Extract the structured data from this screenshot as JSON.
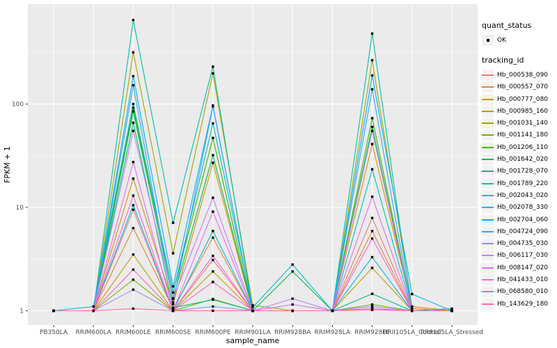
{
  "chart_data": {
    "type": "line",
    "title": "",
    "xlabel": "sample_name",
    "ylabel": "FPKM + 1",
    "y_scale": "log10",
    "y_ticks": [
      1,
      10,
      100
    ],
    "ylim": [
      0.93,
      900
    ],
    "grid": "on",
    "legend_position": "right",
    "panel_color": "#EBEBEB",
    "gridline_color": "#FFFFFF",
    "axis_text_color": "#4D4D4D",
    "marker_color": "#000000",
    "categories": [
      "PB350LA",
      "RRIM600LA",
      "RRIM600LE",
      "RRIM600SE",
      "RRIM600PE",
      "RRIM901LA",
      "RRIM928BA",
      "RRIM928LA",
      "RRIM928LE",
      "RRII105LA_Control",
      "RRII105LA_Stressed"
    ],
    "legend": {
      "quant_status_title": "quant_status",
      "ok_label": "OK",
      "tracking_title": "tracking_id"
    },
    "series": [
      {
        "name": "Hb_000538_090",
        "color": "#F8766D",
        "values": [
          1.0,
          1.0,
          9.5,
          1.0,
          3.1,
          1.0,
          1.0,
          1.0,
          7.9,
          1.0,
          1.0
        ]
      },
      {
        "name": "Hb_000557_070",
        "color": "#EA8331",
        "values": [
          1.0,
          1.0,
          6.3,
          1.05,
          5.1,
          1.0,
          1.0,
          1.0,
          5.9,
          1.0,
          1.0
        ]
      },
      {
        "name": "Hb_000777_080",
        "color": "#D89000",
        "values": [
          1.0,
          1.0,
          19.0,
          1.16,
          27.0,
          1.0,
          1.0,
          1.0,
          41.0,
          1.05,
          1.0
        ]
      },
      {
        "name": "Hb_000985_160",
        "color": "#C09B00",
        "values": [
          1.0,
          1.0,
          3.5,
          1.0,
          2.4,
          1.0,
          1.0,
          1.0,
          2.6,
          1.0,
          1.0
        ]
      },
      {
        "name": "Hb_001031_140",
        "color": "#A3A500",
        "values": [
          1.0,
          1.0,
          316.0,
          3.6,
          198.0,
          1.13,
          1.0,
          1.0,
          265.0,
          1.1,
          1.0
        ]
      },
      {
        "name": "Hb_001141_180",
        "color": "#7CAE00",
        "values": [
          1.0,
          1.0,
          2.0,
          1.0,
          1.3,
          1.0,
          1.0,
          1.0,
          1.15,
          1.0,
          1.0
        ]
      },
      {
        "name": "Hb_001206_110",
        "color": "#39B600",
        "values": [
          1.0,
          1.0,
          92.0,
          1.5,
          47.0,
          1.0,
          1.0,
          1.0,
          73.0,
          1.0,
          1.0
        ]
      },
      {
        "name": "Hb_001642_020",
        "color": "#00BB4E",
        "values": [
          1.0,
          1.0,
          85.0,
          1.32,
          32.0,
          1.0,
          2.4,
          1.0,
          60.0,
          1.0,
          1.0
        ]
      },
      {
        "name": "Hb_001728_070",
        "color": "#00BF7D",
        "values": [
          1.0,
          1.0,
          66.0,
          1.07,
          1.28,
          1.0,
          1.0,
          1.0,
          1.46,
          1.0,
          1.0
        ]
      },
      {
        "name": "Hb_001789_220",
        "color": "#00C1A3",
        "values": [
          1.0,
          1.0,
          650.0,
          7.1,
          230.0,
          1.0,
          1.0,
          1.0,
          480.0,
          1.0,
          1.0
        ]
      },
      {
        "name": "Hb_002043_020",
        "color": "#00BFC4",
        "values": [
          1.0,
          1.1,
          100.0,
          1.5,
          65.0,
          1.08,
          2.8,
          1.0,
          23.4,
          1.0,
          1.0
        ]
      },
      {
        "name": "Hb_002078_330",
        "color": "#00BAE0",
        "values": [
          1.0,
          1.0,
          10.5,
          1.0,
          5.9,
          1.0,
          1.0,
          1.0,
          3.3,
          1.0,
          1.05
        ]
      },
      {
        "name": "Hb_002704_060",
        "color": "#00B0F6",
        "values": [
          1.0,
          1.0,
          186.0,
          1.72,
          97.0,
          1.0,
          1.0,
          1.0,
          189.0,
          1.45,
          1.0
        ]
      },
      {
        "name": "Hb_004724_090",
        "color": "#35A2FF",
        "values": [
          1.0,
          1.0,
          152.0,
          1.2,
          95.0,
          1.0,
          1.0,
          1.0,
          139.0,
          1.0,
          1.0
        ]
      },
      {
        "name": "Hb_004735_030",
        "color": "#9590FF",
        "values": [
          1.0,
          1.0,
          1.6,
          1.0,
          1.1,
          1.0,
          1.0,
          1.0,
          1.1,
          1.0,
          1.0
        ]
      },
      {
        "name": "Hb_006117_030",
        "color": "#C77CFF",
        "values": [
          1.0,
          1.0,
          55.0,
          1.3,
          12.4,
          1.0,
          1.31,
          1.0,
          55.0,
          1.0,
          1.0
        ]
      },
      {
        "name": "Hb_008147_020",
        "color": "#E76BF3",
        "values": [
          1.0,
          1.0,
          27.5,
          1.0,
          9.1,
          1.0,
          1.0,
          1.0,
          12.7,
          1.0,
          1.0
        ]
      },
      {
        "name": "Hb_041433_010",
        "color": "#FA62DB",
        "values": [
          1.0,
          1.0,
          13.0,
          1.0,
          3.4,
          1.0,
          1.15,
          1.0,
          5.0,
          1.0,
          1.0
        ]
      },
      {
        "name": "Hb_068580_010",
        "color": "#FF62BC",
        "values": [
          1.0,
          1.0,
          2.5,
          1.0,
          1.9,
          1.0,
          1.0,
          1.0,
          1.05,
          1.0,
          1.0
        ]
      },
      {
        "name": "Hb_143629_180",
        "color": "#FF6A98",
        "values": [
          1.0,
          1.0,
          1.05,
          1.0,
          1.0,
          1.0,
          1.0,
          1.0,
          1.02,
          1.0,
          1.0
        ]
      }
    ]
  }
}
